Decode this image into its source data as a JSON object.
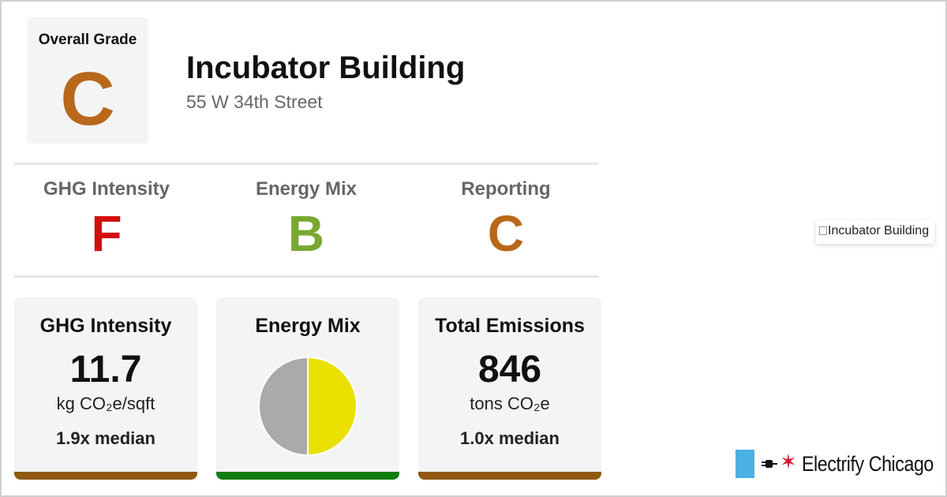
{
  "building": {
    "name": "Incubator Building",
    "address": "55 W 34th Street"
  },
  "overall": {
    "label": "Overall Grade",
    "grade": "C",
    "color": "#b8681a"
  },
  "sub_grades": [
    {
      "label": "GHG Intensity",
      "grade": "F",
      "color": "#d10f0f"
    },
    {
      "label": "Energy Mix",
      "grade": "B",
      "color": "#79a832"
    },
    {
      "label": "Reporting",
      "grade": "C",
      "color": "#b8681a"
    }
  ],
  "cards": {
    "ghg": {
      "title": "GHG Intensity",
      "value": "11.7",
      "unit": "kg CO₂e/sqft",
      "median": "1.9x median",
      "bar_color": "#8f5a10"
    },
    "energy_mix": {
      "title": "Energy Mix",
      "bar_color": "#0f7d0f"
    },
    "emissions": {
      "title": "Total Emissions",
      "value": "846",
      "unit": "tons CO₂e",
      "median": "1.0x median",
      "bar_color": "#8f5a10"
    }
  },
  "chart_data": {
    "type": "pie",
    "title": "Energy Mix",
    "slices": [
      {
        "value": 50,
        "color": "#aaaaaa"
      },
      {
        "value": 50,
        "color": "#eae000"
      }
    ]
  },
  "image_alt": "Incubator Building",
  "logo": {
    "text": "Electrify Chicago",
    "flag_color": "#4ab1e2",
    "star_color": "#d7162b"
  }
}
